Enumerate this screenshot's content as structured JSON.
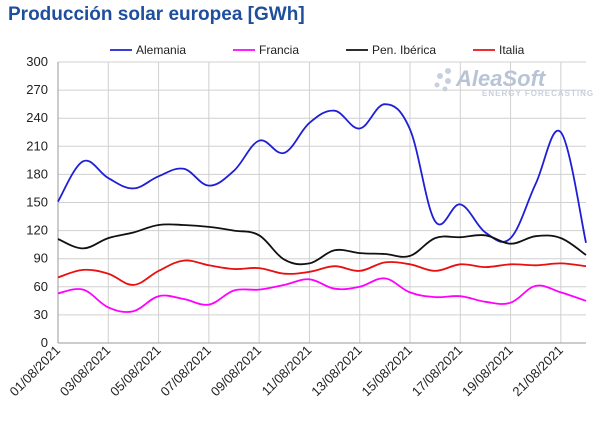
{
  "chart_data": {
    "type": "line",
    "title": "Producción solar europea [GWh]",
    "x": [
      "01/08/2021",
      "02/08/2021",
      "03/08/2021",
      "04/08/2021",
      "05/08/2021",
      "06/08/2021",
      "07/08/2021",
      "08/08/2021",
      "09/08/2021",
      "10/08/2021",
      "11/08/2021",
      "12/08/2021",
      "13/08/2021",
      "14/08/2021",
      "15/08/2021",
      "16/08/2021",
      "17/08/2021",
      "18/08/2021",
      "19/08/2021",
      "20/08/2021",
      "21/08/2021",
      "22/08/2021"
    ],
    "x_tick_labels": [
      "01/08/2021",
      "03/08/2021",
      "05/08/2021",
      "07/08/2021",
      "09/08/2021",
      "11/08/2021",
      "13/08/2021",
      "15/08/2021",
      "17/08/2021",
      "19/08/2021",
      "21/08/2021"
    ],
    "ylim": [
      0,
      300
    ],
    "y_ticks": [
      0,
      30,
      60,
      90,
      120,
      150,
      180,
      210,
      240,
      270,
      300
    ],
    "grid": true,
    "legend_position": "top",
    "series": [
      {
        "name": "Alemania",
        "color": "#1f1fd6",
        "values": [
          151,
          194,
          176,
          165,
          178,
          186,
          168,
          184,
          216,
          203,
          235,
          248,
          229,
          255,
          228,
          130,
          148,
          118,
          112,
          170,
          225,
          107
        ]
      },
      {
        "name": "Francia",
        "color": "#ff00ff",
        "values": [
          53,
          57,
          38,
          34,
          50,
          47,
          41,
          56,
          57,
          62,
          68,
          58,
          60,
          69,
          54,
          49,
          50,
          44,
          43,
          61,
          54,
          45
        ]
      },
      {
        "name": "Pen. Ibérica",
        "color": "#111111",
        "values": [
          111,
          101,
          112,
          118,
          126,
          126,
          124,
          120,
          115,
          89,
          85,
          99,
          96,
          95,
          93,
          112,
          113,
          115,
          106,
          114,
          112,
          94
        ]
      },
      {
        "name": "Italia",
        "color": "#e81010",
        "values": [
          70,
          78,
          74,
          62,
          77,
          88,
          83,
          79,
          80,
          74,
          76,
          82,
          77,
          86,
          84,
          77,
          84,
          81,
          84,
          83,
          85,
          82
        ]
      }
    ]
  },
  "watermark": {
    "brand": "AleaSoft",
    "tagline": "ENERGY FORECASTING"
  }
}
